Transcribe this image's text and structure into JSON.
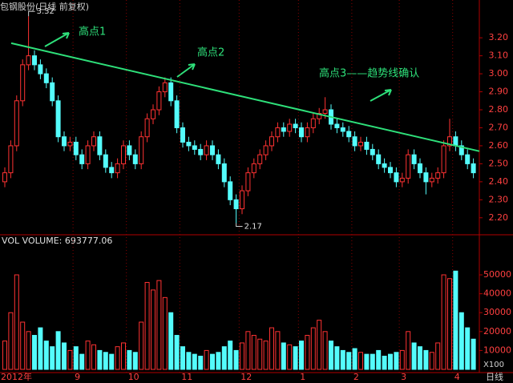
{
  "chart_data": {
    "type": "candlestick",
    "title": "包钢股份(日线 前复权)",
    "period_label": "日线",
    "categories": [
      "2012年",
      null,
      null,
      null,
      null,
      null,
      null,
      null,
      null,
      null,
      null,
      null,
      "9",
      null,
      null,
      null,
      null,
      null,
      null,
      null,
      null,
      "10",
      null,
      null,
      null,
      null,
      null,
      null,
      null,
      null,
      "11",
      null,
      null,
      null,
      null,
      null,
      null,
      null,
      null,
      null,
      "12",
      null,
      null,
      null,
      null,
      null,
      null,
      null,
      null,
      null,
      "1",
      null,
      null,
      null,
      null,
      null,
      null,
      null,
      null,
      "2",
      null,
      null,
      null,
      null,
      null,
      null,
      null,
      "3",
      null,
      null,
      null,
      null,
      null,
      null,
      null,
      null,
      "4",
      null,
      null,
      null
    ],
    "open": [
      2.4,
      2.45,
      2.6,
      2.85,
      3.05,
      3.1,
      3.05,
      3.0,
      2.95,
      2.85,
      2.65,
      2.6,
      2.62,
      2.55,
      2.5,
      2.6,
      2.65,
      2.55,
      2.48,
      2.45,
      2.5,
      2.6,
      2.55,
      2.5,
      2.65,
      2.75,
      2.8,
      2.9,
      2.95,
      2.85,
      2.7,
      2.62,
      2.6,
      2.58,
      2.55,
      2.6,
      2.55,
      2.5,
      2.4,
      2.3,
      2.25,
      2.35,
      2.45,
      2.5,
      2.55,
      2.6,
      2.65,
      2.7,
      2.68,
      2.72,
      2.7,
      2.65,
      2.7,
      2.75,
      2.78,
      2.8,
      2.72,
      2.7,
      2.68,
      2.65,
      2.6,
      2.62,
      2.58,
      2.55,
      2.5,
      2.48,
      2.45,
      2.4,
      2.42,
      2.55,
      2.5,
      2.45,
      2.4,
      2.42,
      2.45,
      2.6,
      2.65,
      2.6,
      2.55,
      2.5
    ],
    "high": [
      2.48,
      2.63,
      2.88,
      3.08,
      3.32,
      3.13,
      3.08,
      3.03,
      2.98,
      2.88,
      2.68,
      2.65,
      2.65,
      2.58,
      2.63,
      2.68,
      2.68,
      2.58,
      2.51,
      2.53,
      2.63,
      2.63,
      2.58,
      2.68,
      2.78,
      2.83,
      2.93,
      2.98,
      2.98,
      2.88,
      2.73,
      2.65,
      2.63,
      2.61,
      2.63,
      2.63,
      2.58,
      2.53,
      2.43,
      2.33,
      2.38,
      2.48,
      2.53,
      2.58,
      2.63,
      2.68,
      2.73,
      2.73,
      2.75,
      2.75,
      2.73,
      2.73,
      2.78,
      2.81,
      2.87,
      2.83,
      2.75,
      2.73,
      2.71,
      2.68,
      2.65,
      2.65,
      2.61,
      2.58,
      2.53,
      2.51,
      2.48,
      2.45,
      2.58,
      2.58,
      2.53,
      2.48,
      2.45,
      2.48,
      2.63,
      2.75,
      2.68,
      2.63,
      2.58,
      2.53
    ],
    "low": [
      2.37,
      2.42,
      2.57,
      2.82,
      3.02,
      3.02,
      2.97,
      2.92,
      2.82,
      2.62,
      2.57,
      2.57,
      2.52,
      2.47,
      2.47,
      2.57,
      2.52,
      2.45,
      2.42,
      2.42,
      2.47,
      2.52,
      2.47,
      2.47,
      2.62,
      2.72,
      2.77,
      2.87,
      2.82,
      2.67,
      2.59,
      2.57,
      2.55,
      2.52,
      2.52,
      2.52,
      2.47,
      2.37,
      2.27,
      2.17,
      2.22,
      2.32,
      2.42,
      2.47,
      2.52,
      2.57,
      2.62,
      2.65,
      2.65,
      2.67,
      2.62,
      2.62,
      2.67,
      2.72,
      2.75,
      2.69,
      2.67,
      2.65,
      2.62,
      2.57,
      2.57,
      2.55,
      2.52,
      2.47,
      2.45,
      2.42,
      2.37,
      2.37,
      2.39,
      2.47,
      2.42,
      2.33,
      2.37,
      2.39,
      2.42,
      2.57,
      2.57,
      2.52,
      2.47,
      2.42
    ],
    "close": [
      2.45,
      2.6,
      2.85,
      3.05,
      3.1,
      3.05,
      3.0,
      2.95,
      2.85,
      2.65,
      2.6,
      2.62,
      2.55,
      2.5,
      2.6,
      2.65,
      2.55,
      2.48,
      2.45,
      2.5,
      2.6,
      2.55,
      2.5,
      2.65,
      2.75,
      2.8,
      2.9,
      2.95,
      2.85,
      2.7,
      2.62,
      2.6,
      2.58,
      2.55,
      2.6,
      2.55,
      2.5,
      2.4,
      2.3,
      2.25,
      2.35,
      2.45,
      2.5,
      2.55,
      2.6,
      2.65,
      2.7,
      2.68,
      2.72,
      2.7,
      2.65,
      2.7,
      2.75,
      2.78,
      2.8,
      2.72,
      2.7,
      2.68,
      2.65,
      2.6,
      2.62,
      2.58,
      2.55,
      2.5,
      2.48,
      2.45,
      2.4,
      2.42,
      2.55,
      2.5,
      2.45,
      2.4,
      2.42,
      2.45,
      2.6,
      2.65,
      2.6,
      2.55,
      2.5,
      2.45
    ],
    "up_color": "#ff3232",
    "down_color": "#54fcfc",
    "ylim": [
      2.11,
      3.41
    ],
    "yticks": [
      {
        "value": 2.2,
        "label": "2.20"
      },
      {
        "value": 2.3,
        "label": "2.30"
      },
      {
        "value": 2.4,
        "label": "2.40"
      },
      {
        "value": 2.5,
        "label": "2.50"
      },
      {
        "value": 2.6,
        "label": "2.60"
      },
      {
        "value": 2.7,
        "label": "2.70"
      },
      {
        "value": 2.8,
        "label": "2.80"
      },
      {
        "value": 2.9,
        "label": "2.90"
      },
      {
        "value": 3.0,
        "label": "3.00"
      },
      {
        "value": 3.1,
        "label": "3.10"
      },
      {
        "value": 3.2,
        "label": "3.20"
      }
    ],
    "trendline": {
      "values": [
        3.17,
        2.57
      ],
      "color": "#2ee07a"
    },
    "annotations": [
      "高点1",
      "高点2",
      "高点3——趋势线确认"
    ],
    "volume": {
      "label": "VOL VOLUME: 693777.06",
      "unit_label": "X100",
      "values": [
        15000,
        30000,
        50000,
        25000,
        20000,
        18000,
        22000,
        15000,
        12000,
        20000,
        14000,
        10000,
        12000,
        8000,
        15000,
        13000,
        10000,
        9000,
        8000,
        12000,
        14000,
        10000,
        9000,
        25000,
        46000,
        42000,
        47000,
        38000,
        30000,
        18000,
        12000,
        9000,
        8000,
        7000,
        10000,
        8000,
        9000,
        12000,
        15000,
        10000,
        14000,
        20000,
        18000,
        16000,
        15000,
        22000,
        20000,
        14000,
        13000,
        12000,
        15000,
        18000,
        22000,
        26000,
        20000,
        15000,
        12000,
        10000,
        9000,
        11000,
        9000,
        8000,
        8000,
        10000,
        7000,
        8000,
        9000,
        10000,
        20000,
        14000,
        12000,
        10000,
        9000,
        14000,
        50000,
        48000,
        52000,
        30000,
        22000,
        16000
      ],
      "ylim": [
        0,
        64000
      ],
      "yticks": [
        10000,
        20000,
        30000,
        40000,
        50000
      ]
    }
  }
}
